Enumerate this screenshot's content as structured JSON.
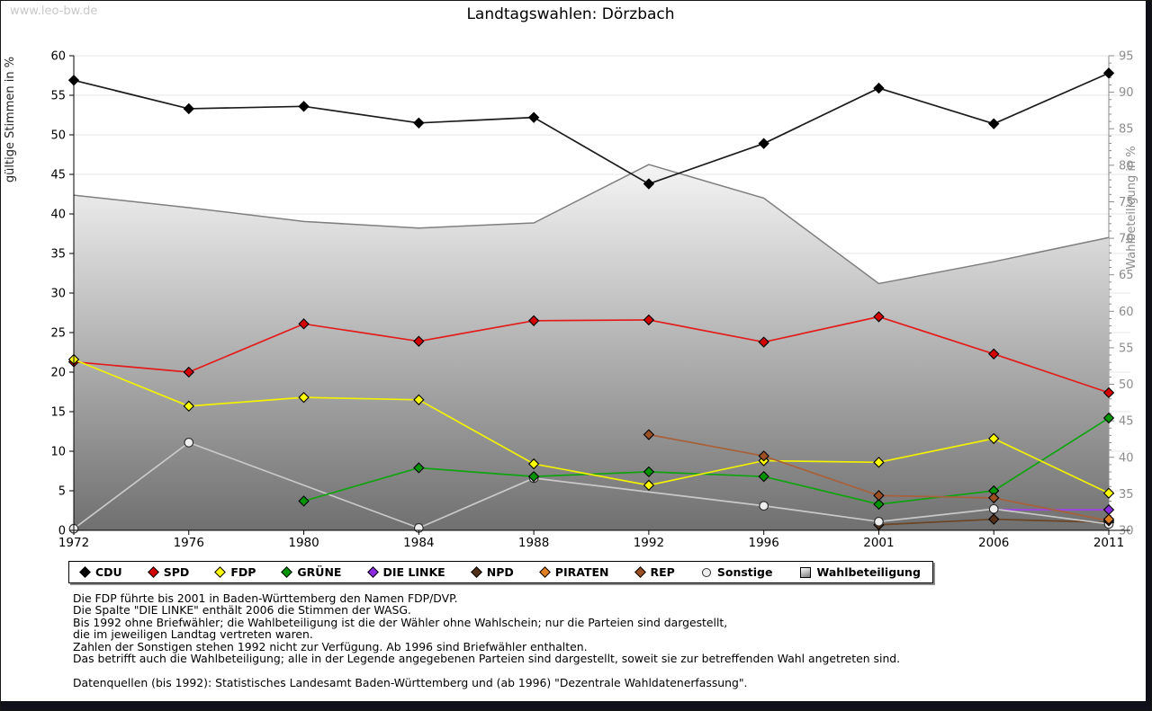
{
  "watermark": "www.leo-bw.de",
  "title": "Landtagswahlen: Dörzbach",
  "legend": {
    "items": [
      {
        "label": "CDU",
        "shape": "diamond",
        "color": "#000000"
      },
      {
        "label": "SPD",
        "shape": "diamond",
        "color": "#d40000"
      },
      {
        "label": "FDP",
        "shape": "diamond",
        "color": "#ffff00"
      },
      {
        "label": "GRÜNE",
        "shape": "diamond",
        "color": "#009400"
      },
      {
        "label": "DIE LINKE",
        "shape": "diamond",
        "color": "#8a2be2"
      },
      {
        "label": "NPD",
        "shape": "diamond",
        "color": "#53301a"
      },
      {
        "label": "PIRATEN",
        "shape": "diamond",
        "color": "#e08020"
      },
      {
        "label": "REP",
        "shape": "diamond",
        "color": "#9c4f22"
      },
      {
        "label": "Sonstige",
        "shape": "circle",
        "color": "#eeeeee"
      },
      {
        "label": "Wahlbeteiligung",
        "shape": "square",
        "color": "gradient"
      }
    ]
  },
  "footnotes": [
    "Die FDP führte bis 2001 in Baden-Württemberg den Namen FDP/DVP.",
    "Die Spalte \"DIE LINKE\" enthält 2006 die Stimmen der WASG.",
    "Bis 1992 ohne Briefwähler; die Wahlbeteiligung ist die der Wähler ohne Wahlschein; nur die Parteien sind dargestellt,",
    "die im jeweiligen Landtag vertreten waren.",
    "Zahlen der Sonstigen stehen 1992 nicht zur Verfügung. Ab 1996 sind Briefwähler enthalten.",
    "Das betrifft auch die Wahlbeteiligung; alle in der Legende angegebenen Parteien sind dargestellt, soweit sie zur betreffenden Wahl angetreten sind.",
    "",
    "Datenquellen (bis 1992): Statistisches Landesamt Baden-Württemberg und (ab 1996) \"Dezentrale Wahldatenerfassung\"."
  ],
  "chart_data": {
    "type": "line",
    "title": "Landtagswahlen: Dörzbach",
    "x_categories": [
      1972,
      1976,
      1980,
      1984,
      1988,
      1992,
      1996,
      2001,
      2006,
      2011
    ],
    "left_axis": {
      "label": "gültige Stimmen in %",
      "min": 0,
      "max": 60,
      "tick_step": 5,
      "grid": true
    },
    "right_axis": {
      "label": "Wahlbeteiligung in %",
      "min": 30,
      "max": 95,
      "tick_step": 5,
      "minor_step": 1
    },
    "legend_position": "bottom",
    "series": [
      {
        "name": "CDU",
        "axis": "left",
        "marker": "diamond",
        "color": "#000000",
        "line_color": "#1b1b1b",
        "values": [
          56.9,
          53.3,
          53.6,
          51.5,
          52.2,
          43.8,
          48.9,
          55.9,
          51.4,
          57.8
        ]
      },
      {
        "name": "SPD",
        "axis": "left",
        "marker": "diamond",
        "color": "#d40000",
        "line_color": "#e31b1b",
        "values": [
          21.3,
          20.0,
          26.1,
          23.9,
          26.5,
          26.6,
          23.8,
          27.0,
          22.3,
          17.4
        ]
      },
      {
        "name": "FDP",
        "axis": "left",
        "marker": "diamond",
        "color": "#ffff00",
        "line_color": "#f2f200",
        "values": [
          21.6,
          15.7,
          16.8,
          16.5,
          8.4,
          5.7,
          8.8,
          8.6,
          11.6,
          4.7
        ]
      },
      {
        "name": "GRÜNE",
        "axis": "left",
        "marker": "diamond",
        "color": "#009400",
        "line_color": "#0fa30f",
        "values": [
          null,
          null,
          3.7,
          7.9,
          6.8,
          7.4,
          6.8,
          3.3,
          5.0,
          14.2
        ]
      },
      {
        "name": "DIE LINKE",
        "axis": "left",
        "marker": "diamond",
        "color": "#8a2be2",
        "line_color": "#a040e8",
        "values": [
          null,
          null,
          null,
          null,
          null,
          null,
          null,
          null,
          2.6,
          2.6
        ]
      },
      {
        "name": "NPD",
        "axis": "left",
        "marker": "diamond",
        "color": "#53301a",
        "line_color": "#6b4423",
        "values": [
          null,
          null,
          null,
          null,
          null,
          null,
          null,
          0.7,
          1.4,
          1.0
        ]
      },
      {
        "name": "PIRATEN",
        "axis": "left",
        "marker": "diamond",
        "color": "#e08020",
        "line_color": "#e08020",
        "values": [
          null,
          null,
          null,
          null,
          null,
          null,
          null,
          null,
          null,
          1.4
        ]
      },
      {
        "name": "REP",
        "axis": "left",
        "marker": "diamond",
        "color": "#9c4f22",
        "line_color": "#a8603a",
        "values": [
          null,
          null,
          null,
          null,
          null,
          12.1,
          9.4,
          4.4,
          4.1,
          1.2
        ]
      },
      {
        "name": "Sonstige",
        "axis": "left",
        "marker": "circle",
        "color": "#eeeeee",
        "line_color": "#c9c9c9",
        "values": [
          0.2,
          11.1,
          null,
          0.3,
          6.6,
          null,
          3.1,
          1.1,
          2.7,
          0.8
        ]
      },
      {
        "name": "Wahlbeteiligung",
        "axis": "right",
        "type": "area",
        "color": "#7f7f7f",
        "values": [
          75.9,
          74.2,
          72.3,
          71.4,
          72.1,
          80.1,
          75.5,
          63.8,
          66.8,
          70.1
        ]
      }
    ],
    "draw_order": [
      "Wahlbeteiligung",
      "NPD",
      "DIE LINKE",
      "Sonstige",
      "GRÜNE",
      "SPD",
      "FDP",
      "REP",
      "PIRATEN",
      "CDU"
    ]
  }
}
